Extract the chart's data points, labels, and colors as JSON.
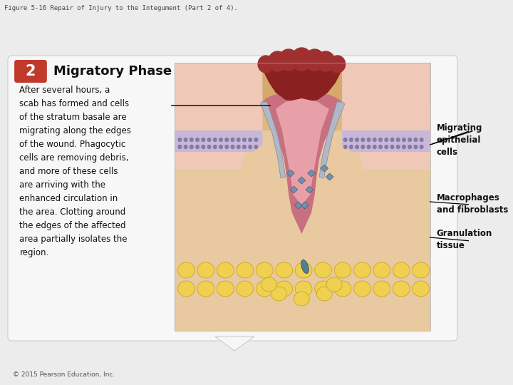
{
  "figure_title": "Figure 5-16 Repair of Injury to the Integument (Part 2 of 4).",
  "step_number": "2",
  "step_title": "Migratory Phase",
  "body_text": "After several hours, a\nscab has formed and cells\nof the stratum basale are\nmigrating along the edges\nof the wound. Phagocytic\ncells are removing debris,\nand more of these cells\nare arriving with the\nenhanced circulation in\nthe area. Clotting around\nthe edges of the affected\narea partially isolates the\nregion.",
  "label1": "Migrating\nepithelial\ncells",
  "label2": "Macrophages\nand fibroblasts",
  "label3": "Granulation\ntissue",
  "copyright": "© 2015 Pearson Education, Inc.",
  "bg_color": "#ececec",
  "card_color": "#f7f7f7",
  "card_border": "#cccccc",
  "step_box_color": "#c0392b",
  "step_title_color": "#111111",
  "body_text_color": "#111111",
  "label_color": "#111111",
  "fig_title_color": "#444444",
  "skin_tan": "#d4a96a",
  "skin_light": "#e8c9a0",
  "skin_pink": "#f0c8b8",
  "scab_dark": "#8b2020",
  "scab_mid": "#a03030",
  "wound_pink": "#c87080",
  "wound_light": "#e8a0a8",
  "epi_lavender": "#c8b8d8",
  "epi_dots": "#8878a8",
  "fat_yellow": "#f0d050",
  "fat_border": "#c8a820",
  "macro_blue": "#7090b0",
  "gran_red": "#b86070"
}
